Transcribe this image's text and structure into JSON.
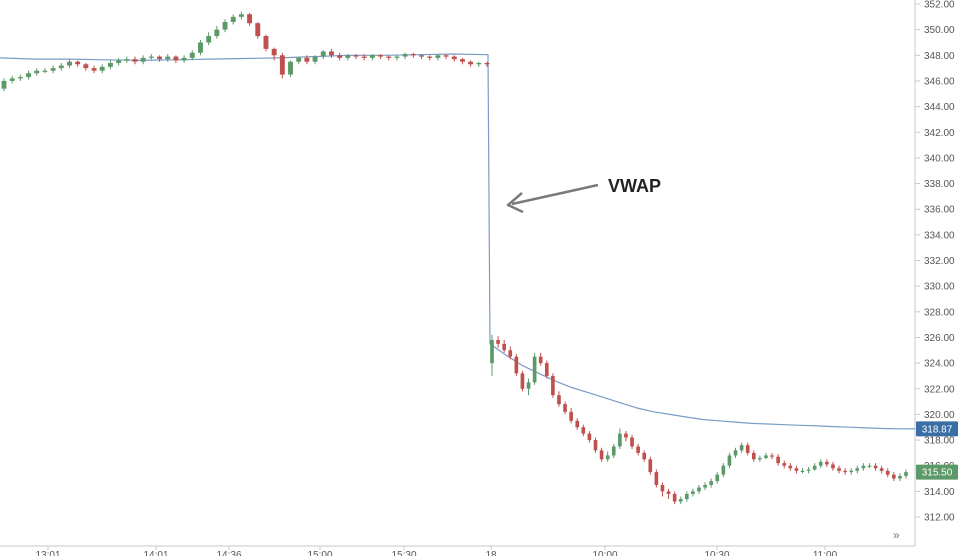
{
  "chart_data": {
    "type": "candlestick",
    "title": "",
    "xlabel": "",
    "ylabel": "",
    "ylim": [
      311.2,
      352.4
    ],
    "yticks": [
      "352.00",
      "350.00",
      "348.00",
      "346.00",
      "344.00",
      "342.00",
      "340.00",
      "338.00",
      "336.00",
      "334.00",
      "332.00",
      "330.00",
      "328.00",
      "326.00",
      "324.00",
      "322.00",
      "320.00",
      "318.00",
      "316.00",
      "314.00",
      "312.00"
    ],
    "xticks": [
      "13:01",
      "14:01",
      "14:36",
      "15:00",
      "15:30",
      "18",
      "10:00",
      "10:30",
      "11:00"
    ],
    "grid": false,
    "annotation": {
      "text": "VWAP",
      "points_to": "vwap-line"
    },
    "price_tags": [
      {
        "label": "318.87",
        "value": 318.87,
        "color": "#3a6ea5"
      },
      {
        "label": "315.50",
        "value": 315.5,
        "color": "#5b9a68"
      }
    ],
    "colors": {
      "up": "#5b9a68",
      "down": "#c0504d",
      "vwap": "#7a9cc6"
    },
    "scroll_icon": "double-chevron-right-icon",
    "series": [
      {
        "name": "",
        "kind": "candles",
        "session1": {
          "open": [
            345.4,
            346.0,
            346.2,
            346.3,
            346.6,
            346.8,
            346.8,
            347.0,
            347.2,
            347.5,
            347.3,
            347.0,
            346.8,
            347.1,
            347.4,
            347.6,
            347.7,
            347.5,
            347.8,
            347.9,
            347.7,
            347.9,
            347.6,
            347.8,
            348.2,
            349.0,
            349.5,
            350.0,
            350.6,
            351.0,
            351.2,
            350.5,
            349.5,
            348.5,
            348.0,
            346.5,
            347.5,
            347.8,
            347.5,
            347.9,
            348.3,
            348.0,
            347.8,
            348.0,
            347.9,
            347.8,
            348.0,
            347.9,
            347.8,
            347.9,
            348.1,
            348.0,
            347.9,
            347.8,
            348.0,
            347.9,
            347.7,
            347.5,
            347.3,
            347.4
          ],
          "close": [
            346.0,
            346.2,
            346.3,
            346.6,
            346.8,
            346.8,
            347.0,
            347.2,
            347.5,
            347.3,
            347.0,
            346.8,
            347.1,
            347.4,
            347.6,
            347.7,
            347.5,
            347.8,
            347.9,
            347.7,
            347.9,
            347.6,
            347.8,
            348.2,
            349.0,
            349.5,
            350.0,
            350.6,
            351.0,
            351.2,
            350.5,
            349.5,
            348.5,
            348.0,
            346.5,
            347.5,
            347.8,
            347.5,
            347.9,
            348.3,
            348.0,
            347.8,
            348.0,
            347.9,
            347.8,
            348.0,
            347.9,
            347.8,
            347.9,
            348.1,
            348.0,
            347.9,
            347.8,
            348.0,
            347.9,
            347.7,
            347.5,
            347.3,
            347.4,
            347.3
          ],
          "high": [
            346.2,
            346.4,
            346.5,
            346.8,
            347.0,
            347.0,
            347.2,
            347.4,
            347.7,
            347.6,
            347.4,
            347.2,
            347.3,
            347.6,
            347.8,
            347.9,
            347.9,
            348.0,
            348.1,
            348.0,
            348.1,
            348.0,
            348.0,
            348.4,
            349.2,
            349.8,
            350.3,
            350.8,
            351.2,
            351.4,
            351.3,
            350.6,
            349.6,
            348.6,
            348.2,
            347.6,
            347.9,
            348.0,
            348.0,
            348.4,
            348.5,
            348.2,
            348.1,
            348.1,
            348.1,
            348.1,
            348.1,
            348.0,
            348.0,
            348.2,
            348.2,
            348.1,
            348.0,
            348.1,
            348.1,
            348.0,
            347.8,
            347.6,
            347.5,
            347.5
          ],
          "low": [
            345.2,
            345.8,
            346.0,
            346.1,
            346.4,
            346.6,
            346.6,
            346.8,
            347.0,
            347.1,
            346.8,
            346.6,
            346.6,
            346.9,
            347.2,
            347.4,
            347.3,
            347.3,
            347.6,
            347.5,
            347.5,
            347.4,
            347.4,
            347.6,
            348.0,
            348.8,
            349.3,
            349.8,
            350.4,
            350.8,
            350.3,
            349.3,
            348.3,
            347.6,
            346.2,
            346.3,
            347.3,
            347.3,
            347.3,
            347.7,
            347.8,
            347.6,
            347.6,
            347.7,
            347.6,
            347.6,
            347.7,
            347.6,
            347.6,
            347.7,
            347.8,
            347.7,
            347.6,
            347.6,
            347.7,
            347.5,
            347.3,
            347.1,
            347.1,
            347.1
          ]
        },
        "session2": {
          "open": [
            324.0,
            325.8,
            325.5,
            325.0,
            324.5,
            323.2,
            322.0,
            322.5,
            324.5,
            324.0,
            323.0,
            321.5,
            320.8,
            320.2,
            319.5,
            319.0,
            318.5,
            318.0,
            317.2,
            316.5,
            316.8,
            317.5,
            318.5,
            318.2,
            317.5,
            317.0,
            316.5,
            315.5,
            314.5,
            314.0,
            313.8,
            313.2,
            313.4,
            313.8,
            314.0,
            314.3,
            314.5,
            314.8,
            315.3,
            316.0,
            316.8,
            317.2,
            317.6,
            317.0,
            316.5,
            316.6,
            316.8,
            316.7,
            316.2,
            316.0,
            315.8,
            315.6,
            315.6,
            315.7,
            316.0,
            316.3,
            316.1,
            315.8,
            315.6,
            315.5,
            315.6,
            315.8,
            316.0,
            316.0,
            315.8,
            315.6,
            315.3,
            315.0,
            315.2
          ],
          "close": [
            325.8,
            325.5,
            325.0,
            324.5,
            323.2,
            322.0,
            322.5,
            324.5,
            324.0,
            323.0,
            321.5,
            320.8,
            320.2,
            319.5,
            319.0,
            318.5,
            318.0,
            317.2,
            316.5,
            316.8,
            317.5,
            318.5,
            318.2,
            317.5,
            317.0,
            316.5,
            315.5,
            314.5,
            314.0,
            313.8,
            313.2,
            313.4,
            313.8,
            314.0,
            314.3,
            314.5,
            314.8,
            315.3,
            316.0,
            316.8,
            317.2,
            317.6,
            317.0,
            316.5,
            316.6,
            316.8,
            316.7,
            316.2,
            316.0,
            315.8,
            315.6,
            315.6,
            315.7,
            316.0,
            316.3,
            316.1,
            315.8,
            315.6,
            315.5,
            315.6,
            315.8,
            316.0,
            316.0,
            315.8,
            315.6,
            315.3,
            315.0,
            315.2,
            315.5
          ],
          "high": [
            326.2,
            326.1,
            325.8,
            325.3,
            324.7,
            323.4,
            322.8,
            324.8,
            324.8,
            324.2,
            323.2,
            321.8,
            321.0,
            320.5,
            319.7,
            319.2,
            318.7,
            318.2,
            317.4,
            317.1,
            317.7,
            318.9,
            318.7,
            318.4,
            317.7,
            317.2,
            316.7,
            315.7,
            314.7,
            314.2,
            314.0,
            313.6,
            314.0,
            314.2,
            314.5,
            314.7,
            315.0,
            315.5,
            316.2,
            317.0,
            317.4,
            317.8,
            317.8,
            317.2,
            316.8,
            317.0,
            317.0,
            316.9,
            316.4,
            316.2,
            316.0,
            315.8,
            315.9,
            316.2,
            316.5,
            316.5,
            316.3,
            316.0,
            315.8,
            315.8,
            316.0,
            316.2,
            316.2,
            316.2,
            316.0,
            315.8,
            315.5,
            315.4,
            315.7
          ],
          "low": [
            323.0,
            325.2,
            324.8,
            324.3,
            323.0,
            321.8,
            321.5,
            322.3,
            323.8,
            322.8,
            321.3,
            320.6,
            320.0,
            319.3,
            318.8,
            318.3,
            317.8,
            317.0,
            316.3,
            316.3,
            316.6,
            317.3,
            317.9,
            317.3,
            316.8,
            316.3,
            315.3,
            314.3,
            313.6,
            313.4,
            313.0,
            313.0,
            313.2,
            313.6,
            313.8,
            314.1,
            314.3,
            314.6,
            315.1,
            315.8,
            316.6,
            317.0,
            316.8,
            316.3,
            316.3,
            316.5,
            316.5,
            316.0,
            315.8,
            315.6,
            315.4,
            315.4,
            315.4,
            315.6,
            315.8,
            315.9,
            315.6,
            315.4,
            315.3,
            315.3,
            315.4,
            315.6,
            315.8,
            315.6,
            315.4,
            315.1,
            314.8,
            314.8,
            315.0
          ]
        }
      },
      {
        "name": "VWAP",
        "kind": "line",
        "session1": [
          347.8,
          347.7,
          347.7,
          347.65,
          347.6,
          347.65,
          347.7,
          347.75,
          347.8,
          347.9,
          348.0,
          348.0,
          348.05,
          348.1,
          348.05
        ],
        "session2": [
          325.5,
          324.6,
          323.8,
          323.2,
          322.6,
          322.1,
          321.7,
          321.3,
          320.9,
          320.5,
          320.2,
          320.0,
          319.8,
          319.6,
          319.5,
          319.4,
          319.3,
          319.25,
          319.2,
          319.15,
          319.1,
          319.05,
          319.0,
          318.95,
          318.9,
          318.88,
          318.87
        ]
      }
    ]
  }
}
